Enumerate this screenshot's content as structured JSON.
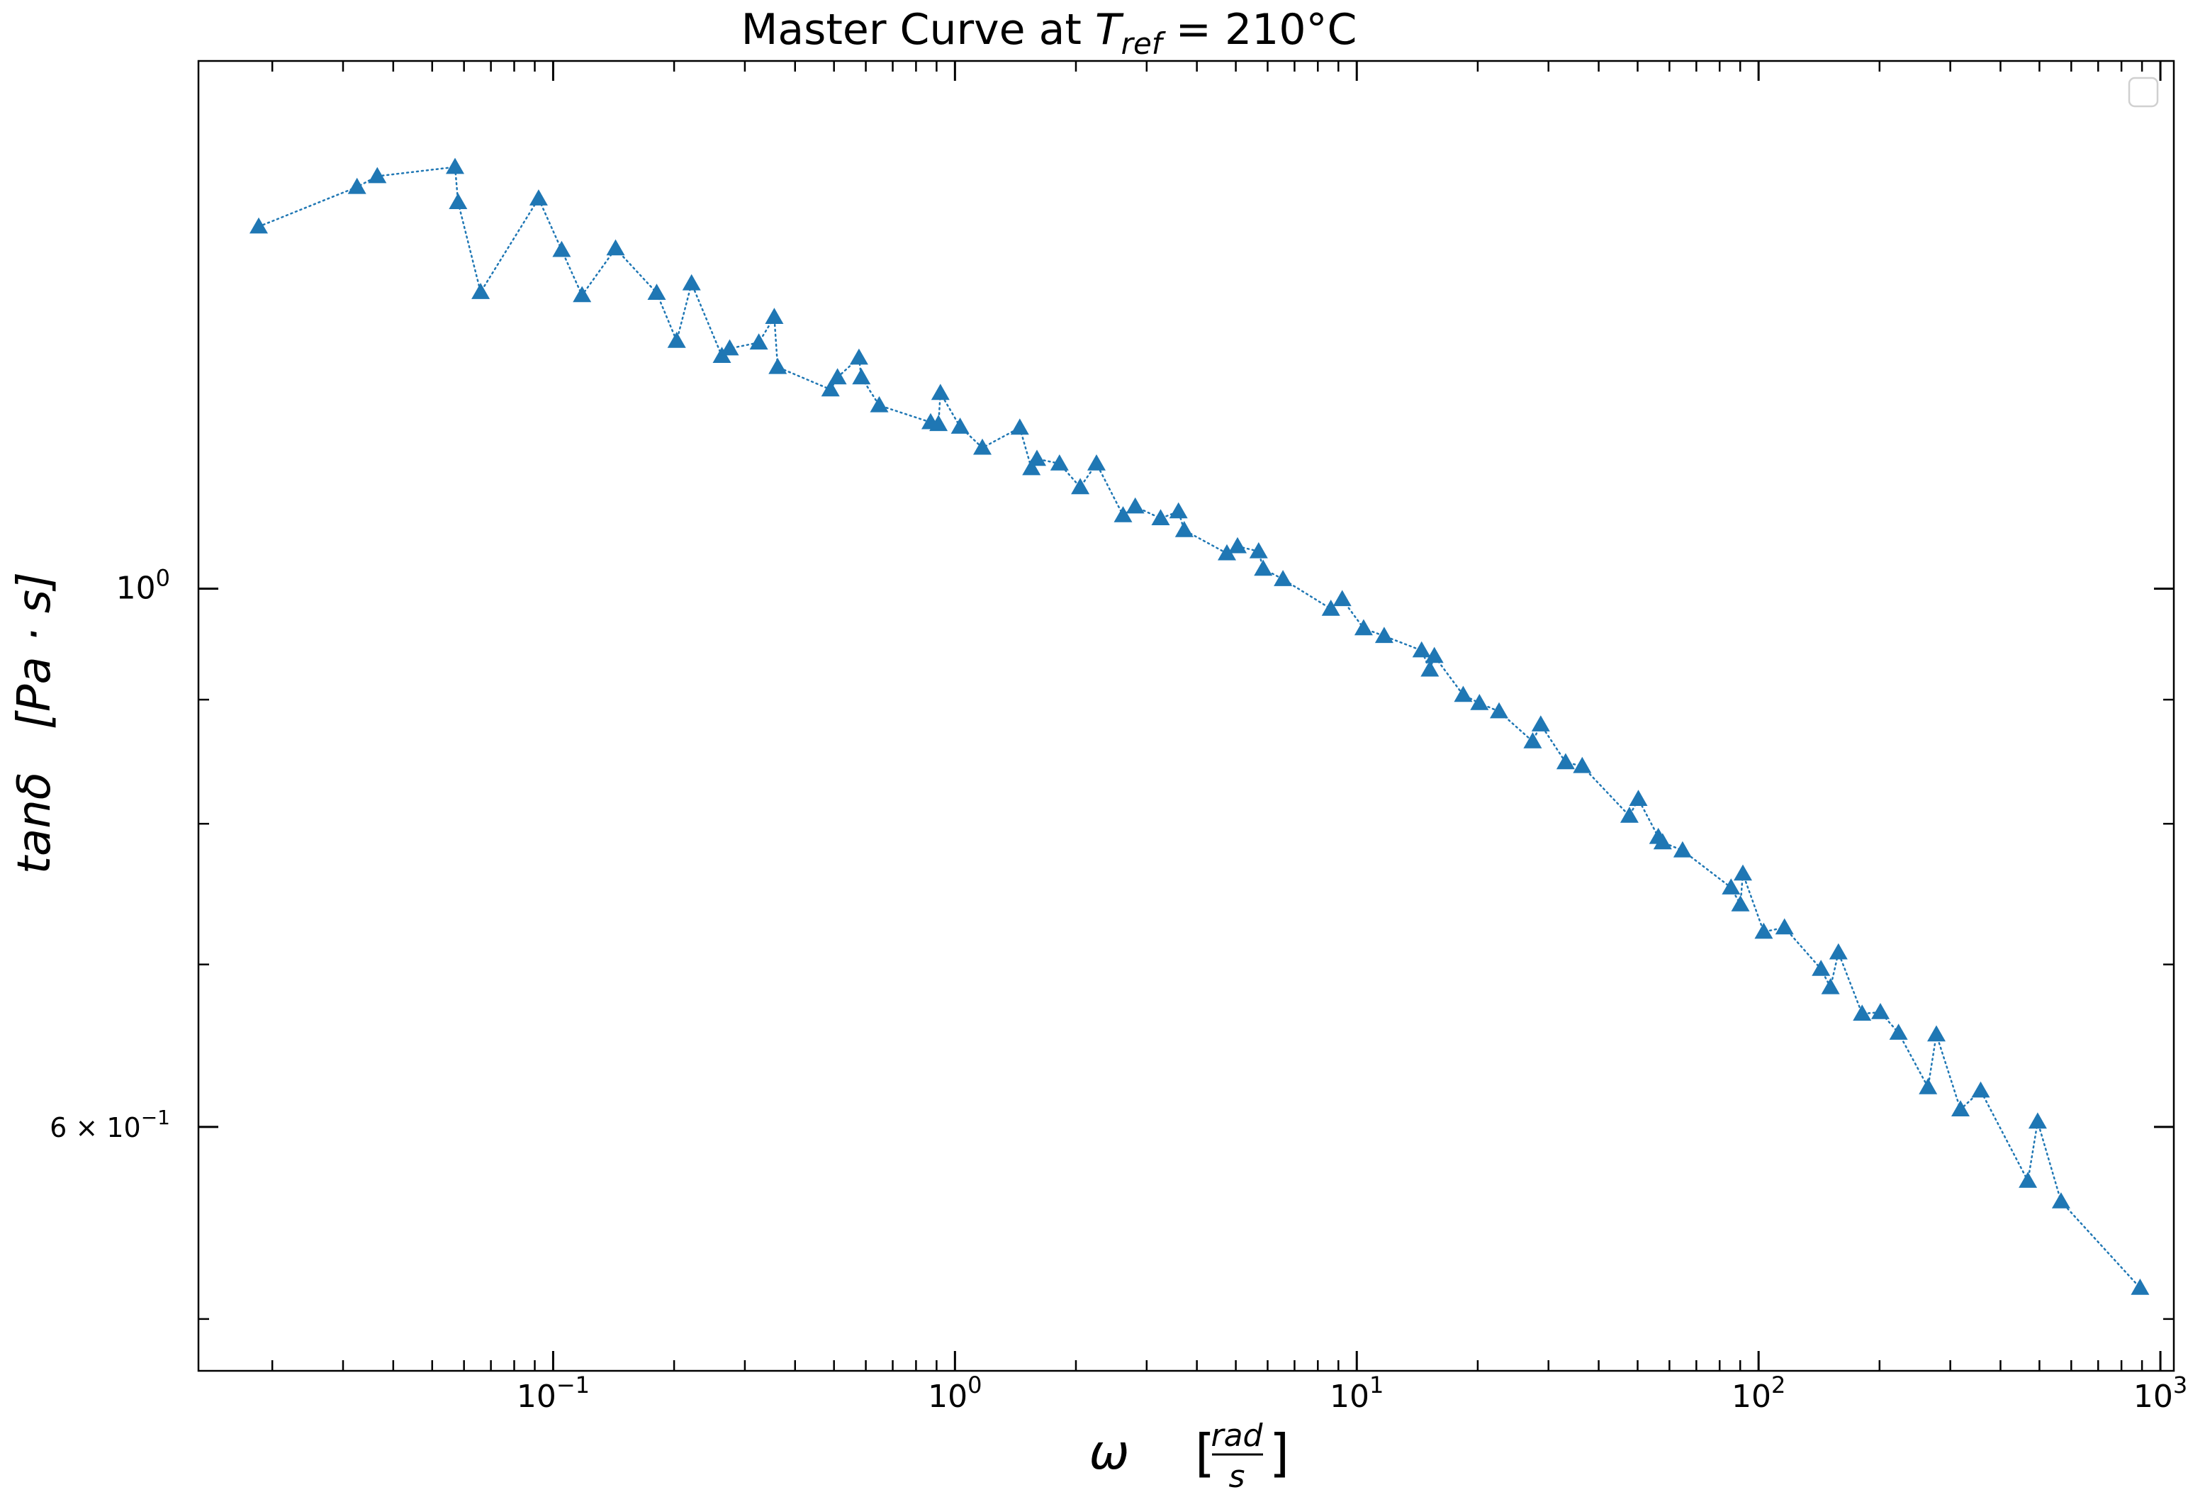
{
  "chart_data": {
    "type": "scatter",
    "title": {
      "prefix": "Master Curve at ",
      "symbol": "T",
      "subscript": "ref",
      "suffix": " = 210°C"
    },
    "xlabel": {
      "symbol": "ω",
      "unit_num": "rad",
      "unit_den": "s"
    },
    "ylabel": {
      "symbol": "tanδ",
      "unit": "[Pa · s]"
    },
    "x_scale": "log",
    "y_scale": "log",
    "xlim": [
      0.0131,
      1080
    ],
    "ylim": [
      0.476,
      1.65
    ],
    "x_ticks": [
      {
        "value": 0.1,
        "base": "10",
        "exp": "−1"
      },
      {
        "value": 1,
        "base": "10",
        "exp": "0"
      },
      {
        "value": 10,
        "base": "10",
        "exp": "1"
      },
      {
        "value": 100,
        "base": "10",
        "exp": "2"
      },
      {
        "value": 1000,
        "base": "10",
        "exp": "3"
      }
    ],
    "y_ticks": [
      {
        "value": 1.0,
        "base": "10",
        "exp": "0",
        "mant": ""
      },
      {
        "value": 0.6,
        "base": "10",
        "exp": "−1",
        "mant": "6 × "
      }
    ],
    "y_minor_ticks": [
      0.5,
      0.7,
      0.8,
      0.9
    ],
    "grid": false,
    "legend": {
      "position": "top-right",
      "entries": []
    },
    "series": [
      {
        "color": "#1f77b4",
        "marker": "triangle",
        "line_style": "dotted",
        "x": [
          0.0185,
          0.0325,
          0.0365,
          0.057,
          0.058,
          0.066,
          0.092,
          0.105,
          0.118,
          0.143,
          0.181,
          0.203,
          0.221,
          0.263,
          0.275,
          0.325,
          0.355,
          0.362,
          0.49,
          0.51,
          0.577,
          0.585,
          0.648,
          0.87,
          0.91,
          0.92,
          1.03,
          1.17,
          1.45,
          1.55,
          1.6,
          1.82,
          2.05,
          2.25,
          2.62,
          2.81,
          3.25,
          3.6,
          3.72,
          4.75,
          5.05,
          5.7,
          5.85,
          6.55,
          8.62,
          9.2,
          10.4,
          11.7,
          14.5,
          15.2,
          15.6,
          18.4,
          20.2,
          22.6,
          27.4,
          28.7,
          33.1,
          36.4,
          47.7,
          50.2,
          56.3,
          57.7,
          64.7,
          85.4,
          90.1,
          91.4,
          103,
          116,
          143,
          151,
          158,
          181,
          201,
          223,
          264,
          277,
          318,
          357,
          468,
          495,
          566,
          890
        ],
        "y": [
          1.41,
          1.464,
          1.479,
          1.492,
          1.443,
          1.325,
          1.448,
          1.379,
          1.321,
          1.381,
          1.324,
          1.265,
          1.336,
          1.247,
          1.256,
          1.263,
          1.294,
          1.234,
          1.208,
          1.222,
          1.245,
          1.222,
          1.19,
          1.171,
          1.169,
          1.204,
          1.166,
          1.143,
          1.165,
          1.121,
          1.131,
          1.126,
          1.101,
          1.126,
          1.072,
          1.081,
          1.069,
          1.076,
          1.057,
          1.034,
          1.041,
          1.036,
          1.019,
          1.009,
          0.981,
          0.99,
          0.963,
          0.956,
          0.943,
          0.926,
          0.938,
          0.904,
          0.897,
          0.89,
          0.865,
          0.879,
          0.848,
          0.845,
          0.806,
          0.819,
          0.79,
          0.786,
          0.78,
          0.753,
          0.741,
          0.763,
          0.722,
          0.725,
          0.697,
          0.685,
          0.708,
          0.668,
          0.669,
          0.656,
          0.623,
          0.655,
          0.61,
          0.621,
          0.57,
          0.603,
          0.559,
          0.515
        ]
      }
    ]
  }
}
